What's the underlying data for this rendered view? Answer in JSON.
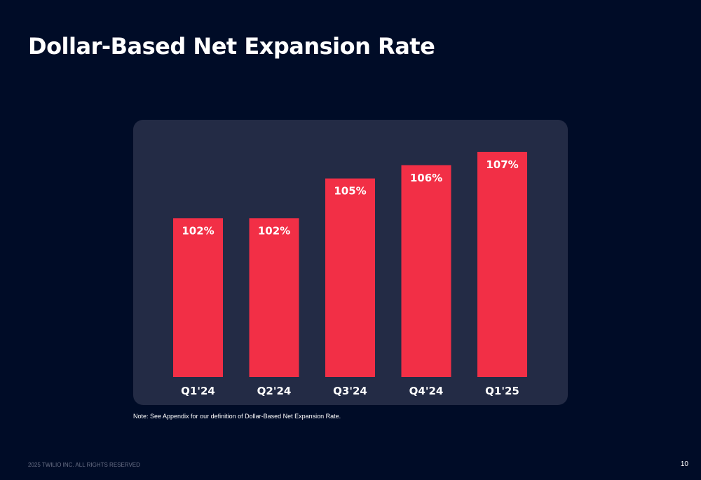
{
  "slide": {
    "title": "Dollar-Based Net Expansion Rate",
    "note": "Note: See Appendix for our definition of Dollar-Based Net Expansion Rate.",
    "footer": "2025 TWILIO INC. ALL RIGHTS RESERVED",
    "page_number": "10"
  },
  "colors": {
    "background": "#000c27",
    "panel": "#232b45",
    "bar": "#f22f46",
    "text": "#ffffff"
  },
  "chart_data": {
    "type": "bar",
    "title": "",
    "xlabel": "",
    "ylabel": "",
    "categories": [
      "Q1'24",
      "Q2'24",
      "Q3'24",
      "Q4'24",
      "Q1'25"
    ],
    "values": [
      102,
      102,
      105,
      106,
      107
    ],
    "data_labels": [
      "102%",
      "102%",
      "105%",
      "106%",
      "107%"
    ],
    "ylim": [
      90,
      108
    ],
    "grid": false,
    "legend": "none"
  }
}
